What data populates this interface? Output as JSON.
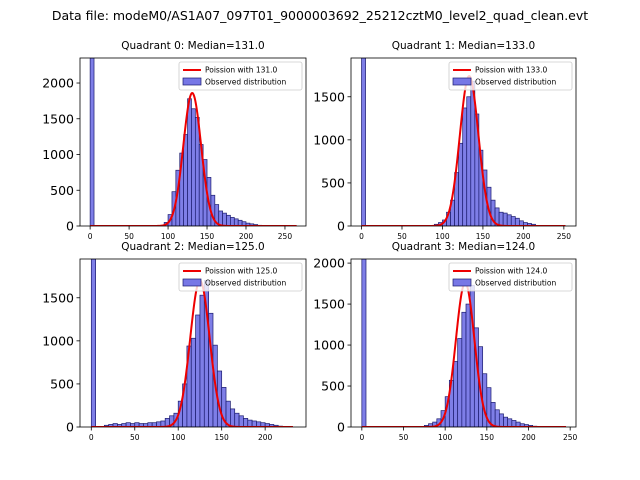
{
  "chart_data": {
    "suptitle": "Data file: modeM0/AS1A07_097T01_9000003692_25212cztM0_level2_quad_clean.evt",
    "bin_width": 5,
    "colors": {
      "bar_fill": "#7777e6",
      "bar_edge": "#1c1c6e",
      "line": "#ee0000"
    },
    "panels": [
      {
        "type": "bar",
        "title": "Quadrant 0: Median=131.0",
        "legend": {
          "position": "top-right",
          "line_label": "Poission with 131.0",
          "bar_label": "Observed distribution"
        },
        "xlim": [
          -13,
          277
        ],
        "ylim": [
          0,
          2350
        ],
        "xticks": [
          0,
          50,
          100,
          150,
          200,
          250
        ],
        "yticks": [
          0,
          500,
          1000,
          1500,
          2000
        ],
        "bin_starts": [
          0,
          95,
          100,
          105,
          110,
          115,
          120,
          125,
          130,
          135,
          140,
          145,
          150,
          155,
          160,
          165,
          170,
          175,
          180,
          185,
          190,
          195,
          200,
          205,
          210,
          215
        ],
        "counts": [
          2350,
          50,
          160,
          480,
          780,
          1020,
          1280,
          1780,
          1640,
          1520,
          1140,
          930,
          680,
          430,
          300,
          210,
          180,
          150,
          120,
          100,
          80,
          60,
          40,
          30,
          20,
          10
        ],
        "line": {
          "mean": 131,
          "sd": 11.4,
          "peak": 1860,
          "x_start": 0,
          "x_end": 265
        }
      },
      {
        "type": "bar",
        "title": "Quadrant 1: Median=133.0",
        "legend": {
          "position": "top-right",
          "line_label": "Poission with 133.0",
          "bar_label": "Observed distribution"
        },
        "xlim": [
          -13,
          265
        ],
        "ylim": [
          0,
          1950
        ],
        "xticks": [
          0,
          50,
          100,
          150,
          200,
          250
        ],
        "yticks": [
          0,
          500,
          1000,
          1500
        ],
        "bin_starts": [
          0,
          90,
          95,
          100,
          105,
          110,
          115,
          120,
          125,
          130,
          135,
          140,
          145,
          150,
          155,
          160,
          165,
          170,
          175,
          180,
          185,
          190,
          195,
          200,
          205,
          210
        ],
        "counts": [
          1950,
          20,
          40,
          70,
          160,
          300,
          620,
          960,
          1370,
          1500,
          1680,
          1300,
          880,
          650,
          450,
          300,
          210,
          160,
          150,
          130,
          110,
          90,
          60,
          40,
          30,
          20
        ],
        "line": {
          "mean": 133,
          "sd": 11.5,
          "peak": 1740,
          "x_start": 0,
          "x_end": 252
        }
      },
      {
        "type": "bar",
        "title": "Quadrant 2: Median=125.0",
        "legend": {
          "position": "top-right",
          "line_label": "Poission with 125.0",
          "bar_label": "Observed distribution"
        },
        "xlim": [
          -13,
          247
        ],
        "ylim": [
          0,
          1950
        ],
        "xticks": [
          0,
          50,
          100,
          150,
          200
        ],
        "yticks": [
          0,
          500,
          1000,
          1500
        ],
        "bin_starts": [
          0,
          15,
          20,
          25,
          30,
          35,
          40,
          45,
          50,
          55,
          60,
          65,
          70,
          75,
          80,
          85,
          90,
          95,
          100,
          105,
          110,
          115,
          120,
          125,
          130,
          135,
          140,
          145,
          150,
          155,
          160,
          165,
          170,
          175,
          180,
          185,
          190,
          195,
          200,
          205,
          210,
          215
        ],
        "counts": [
          1950,
          20,
          30,
          40,
          30,
          40,
          50,
          40,
          50,
          40,
          40,
          50,
          50,
          60,
          70,
          100,
          130,
          160,
          300,
          500,
          940,
          1030,
          1300,
          1530,
          1700,
          1320,
          950,
          650,
          460,
          300,
          210,
          160,
          130,
          100,
          80,
          70,
          60,
          50,
          40,
          30,
          20,
          10
        ],
        "line": {
          "mean": 125,
          "sd": 11.2,
          "peak": 1700,
          "x_start": 0,
          "x_end": 232
        }
      },
      {
        "type": "bar",
        "title": "Quadrant 3: Median=124.0",
        "legend": {
          "position": "top-right",
          "line_label": "Poission with 124.0",
          "bar_label": "Observed distribution"
        },
        "xlim": [
          -13,
          257
        ],
        "ylim": [
          0,
          2050
        ],
        "xticks": [
          0,
          50,
          100,
          150,
          200,
          250
        ],
        "yticks": [
          0,
          500,
          1000,
          1500,
          2000
        ],
        "bin_starts": [
          0,
          75,
          80,
          85,
          90,
          95,
          100,
          105,
          110,
          115,
          120,
          125,
          130,
          135,
          140,
          145,
          150,
          155,
          160,
          165,
          170,
          175,
          180,
          185,
          190,
          195,
          200,
          205
        ],
        "counts": [
          2050,
          20,
          40,
          60,
          100,
          200,
          370,
          570,
          800,
          1080,
          1400,
          1500,
          1730,
          1210,
          980,
          650,
          480,
          300,
          210,
          160,
          120,
          100,
          80,
          60,
          40,
          30,
          20,
          10
        ],
        "line": {
          "mean": 124,
          "sd": 11.1,
          "peak": 1760,
          "x_start": 0,
          "x_end": 245
        }
      }
    ]
  }
}
